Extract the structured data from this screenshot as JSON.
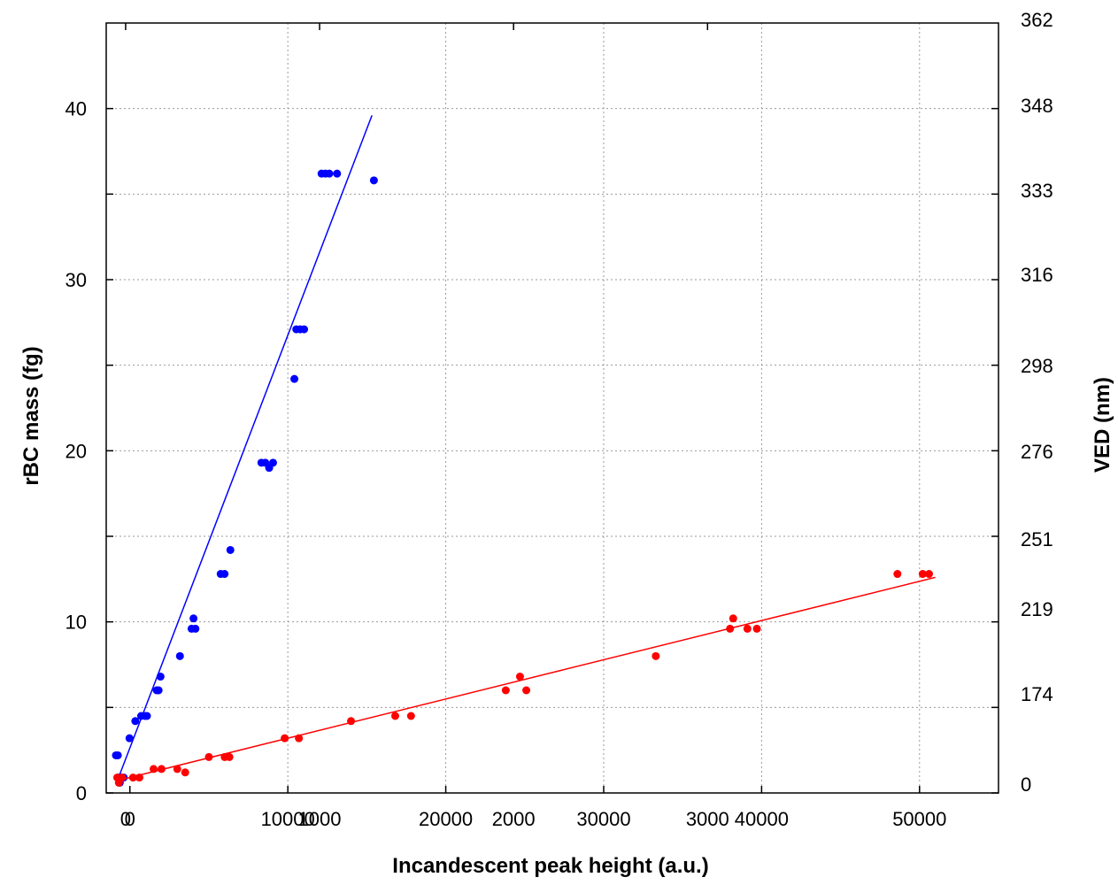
{
  "chart_data": {
    "type": "scatter",
    "title": "",
    "xlabel": "Incandescent peak height (a.u.)",
    "ylabel": "rBC mass (fg)",
    "y2label": "VED (nm)",
    "colors": {
      "series_a": "#0000ff",
      "series_b": "#ff0000",
      "frame": "#000000",
      "grid": "#9a9a9a"
    },
    "grid": true,
    "x_top_axis": {
      "ticks": [
        0,
        1000,
        2000,
        3000
      ],
      "tick_labels": [
        "0",
        "1000",
        "2000",
        "3000"
      ],
      "range": [
        -100,
        4500
      ],
      "applies_to": "series_a"
    },
    "x_bottom_axis": {
      "ticks": [
        0,
        10000,
        20000,
        30000,
        40000,
        50000
      ],
      "tick_labels": [
        "0",
        "10000",
        "20000",
        "30000",
        "40000",
        "50000"
      ],
      "range": [
        -1500,
        55000
      ],
      "applies_to": "series_b"
    },
    "y_left_axis": {
      "range": [
        0,
        45
      ],
      "ticks": [
        0,
        5,
        10,
        15,
        20,
        25,
        30,
        35,
        40
      ],
      "tick_labels": [
        "0",
        "",
        "10",
        "",
        "20",
        "",
        "30",
        "",
        "40"
      ]
    },
    "y_right_axis": {
      "tick_labels": [
        "0",
        "174",
        "219",
        "251",
        "276",
        "298",
        "316",
        "333",
        "348",
        "362"
      ]
    },
    "series": [
      {
        "color": "#0000ff",
        "x_axis": "top",
        "points": [
          [
            -50,
            2.2
          ],
          [
            -40,
            2.2
          ],
          [
            -40,
            0.9
          ],
          [
            -30,
            0.9
          ],
          [
            -30,
            0.6
          ],
          [
            -20,
            0.9
          ],
          [
            -10,
            0.9
          ],
          [
            20,
            3.2
          ],
          [
            50,
            4.2
          ],
          [
            80,
            4.5
          ],
          [
            100,
            4.5
          ],
          [
            110,
            4.5
          ],
          [
            160,
            6.0
          ],
          [
            170,
            6.0
          ],
          [
            180,
            6.8
          ],
          [
            280,
            8.0
          ],
          [
            340,
            9.6
          ],
          [
            350,
            10.2
          ],
          [
            360,
            9.6
          ],
          [
            490,
            12.8
          ],
          [
            510,
            12.8
          ],
          [
            540,
            14.2
          ],
          [
            700,
            19.3
          ],
          [
            720,
            19.3
          ],
          [
            740,
            19.0
          ],
          [
            760,
            19.3
          ],
          [
            870,
            24.2
          ],
          [
            880,
            27.1
          ],
          [
            900,
            27.1
          ],
          [
            920,
            27.1
          ],
          [
            1010,
            36.2
          ],
          [
            1030,
            36.2
          ],
          [
            1050,
            36.2
          ],
          [
            1090,
            36.2
          ],
          [
            1280,
            35.8
          ]
        ],
        "fit_line": [
          [
            -50,
            0.5
          ],
          [
            1270,
            39.6
          ]
        ]
      },
      {
        "color": "#ff0000",
        "x_axis": "bottom",
        "points": [
          [
            -800,
            0.9
          ],
          [
            -700,
            0.6
          ],
          [
            -500,
            0.9
          ],
          [
            200,
            0.9
          ],
          [
            600,
            0.9
          ],
          [
            1500,
            1.4
          ],
          [
            2000,
            1.4
          ],
          [
            3000,
            1.4
          ],
          [
            3500,
            1.2
          ],
          [
            5000,
            2.1
          ],
          [
            6000,
            2.1
          ],
          [
            6300,
            2.1
          ],
          [
            9800,
            3.2
          ],
          [
            10700,
            3.2
          ],
          [
            14000,
            4.2
          ],
          [
            16800,
            4.5
          ],
          [
            17800,
            4.5
          ],
          [
            23800,
            6.0
          ],
          [
            24700,
            6.8
          ],
          [
            25100,
            6.0
          ],
          [
            33300,
            8.0
          ],
          [
            38000,
            9.6
          ],
          [
            38200,
            10.2
          ],
          [
            39100,
            9.6
          ],
          [
            39700,
            9.6
          ],
          [
            48600,
            12.8
          ],
          [
            50200,
            12.8
          ],
          [
            50600,
            12.8
          ]
        ],
        "fit_line": [
          [
            -900,
            0.7
          ],
          [
            51000,
            12.6
          ]
        ]
      }
    ]
  }
}
